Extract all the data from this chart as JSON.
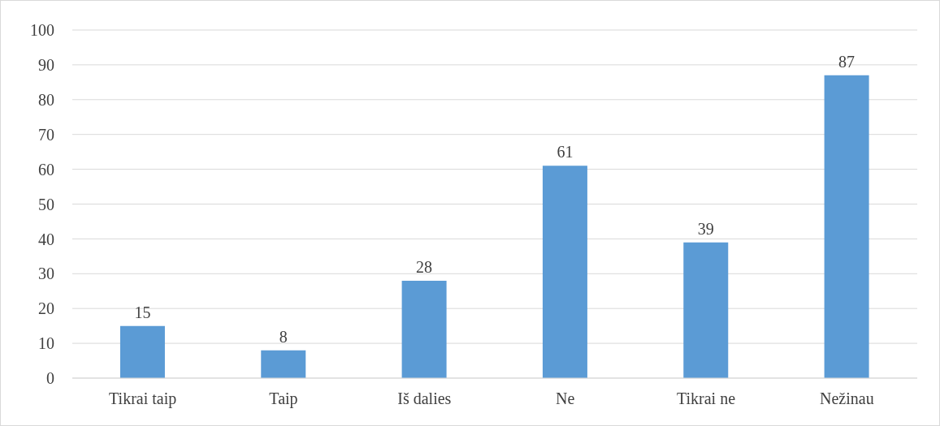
{
  "chart_data": {
    "type": "bar",
    "categories": [
      "Tikrai taip",
      "Taip",
      "Iš dalies",
      "Ne",
      "Tikrai ne",
      "Nežinau"
    ],
    "values": [
      15,
      8,
      28,
      61,
      39,
      87
    ],
    "color": "#5b9bd5",
    "ylim": [
      0,
      100
    ],
    "yticks": [
      0,
      10,
      20,
      30,
      40,
      50,
      60,
      70,
      80,
      90,
      100
    ],
    "grid": "y",
    "data_labels": true
  }
}
